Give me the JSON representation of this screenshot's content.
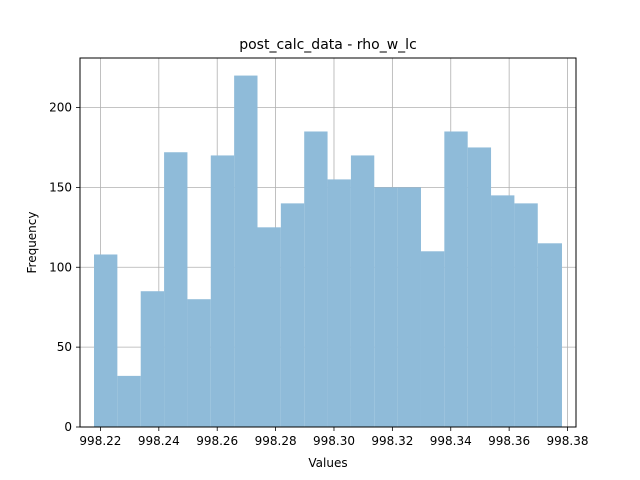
{
  "chart_data": {
    "type": "bar",
    "title": "post_calc_data - rho_w_lc",
    "xlabel": "Values",
    "ylabel": "Frequency",
    "xlim": [
      998.213,
      998.3829
    ],
    "ylim": [
      0,
      231
    ],
    "grid": true,
    "bar_color": "#8fbbd9",
    "bin_edges": [
      998.2178,
      998.2258,
      998.2338,
      998.2418,
      998.2498,
      998.2578,
      998.2658,
      998.2738,
      998.2818,
      998.2898,
      998.2978,
      998.3058,
      998.3138,
      998.3218,
      998.3298,
      998.3378,
      998.3458,
      998.3538,
      998.3618,
      998.3698,
      998.3781
    ],
    "values": [
      108,
      32,
      85,
      172,
      80,
      170,
      220,
      125,
      140,
      185,
      155,
      170,
      150,
      150,
      110,
      185,
      175,
      145,
      140,
      115
    ],
    "xticks": [
      998.22,
      998.24,
      998.26,
      998.28,
      998.3,
      998.32,
      998.34,
      998.36,
      998.38
    ],
    "xtick_labels": [
      "998.22",
      "998.24",
      "998.26",
      "998.28",
      "998.30",
      "998.32",
      "998.34",
      "998.36",
      "998.38"
    ],
    "yticks": [
      0,
      50,
      100,
      150,
      200
    ],
    "ytick_labels": [
      "0",
      "50",
      "100",
      "150",
      "200"
    ]
  }
}
